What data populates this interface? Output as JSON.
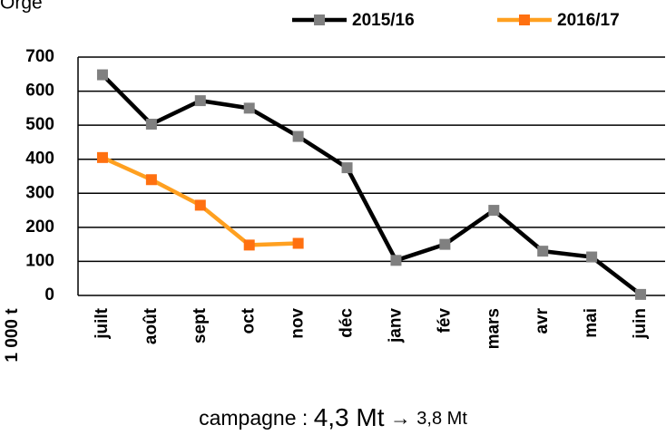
{
  "chart_data": {
    "type": "line",
    "title": "Orge",
    "y_label": "1 000 t",
    "categories": [
      "juilt",
      "août",
      "sept",
      "oct",
      "nov",
      "déc",
      "janv",
      "fév",
      "mars",
      "avr",
      "mai",
      "juin"
    ],
    "series": [
      {
        "name": "2015/16",
        "color": "#000000",
        "marker_color": "#808080",
        "values": [
          648,
          503,
          572,
          550,
          467,
          375,
          103,
          150,
          250,
          130,
          113,
          3
        ]
      },
      {
        "name": "2016/17",
        "color": "#ffa020",
        "marker_color": "#ff7010",
        "values": [
          405,
          340,
          265,
          148,
          153,
          null,
          null,
          null,
          null,
          null,
          null,
          null
        ]
      }
    ],
    "ylim": [
      0,
      700
    ],
    "yticks": [
      0,
      100,
      200,
      300,
      400,
      500,
      600,
      700
    ],
    "grid": true,
    "legend": "top",
    "footer": [
      "campagne : ",
      "4,3 Mt",
      " → ",
      "3,8 Mt"
    ]
  }
}
